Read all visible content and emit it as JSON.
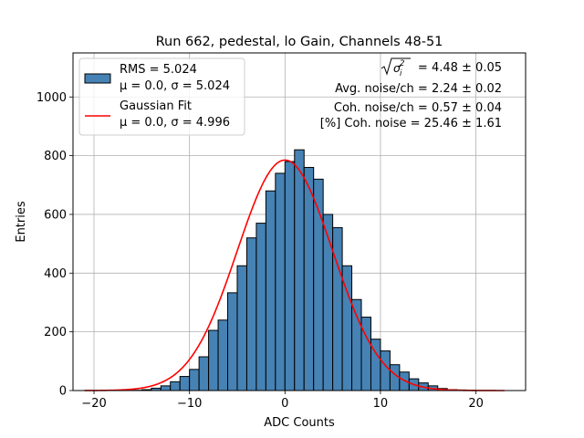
{
  "chart_data": {
    "type": "bar",
    "title": "Run 662, pedestal, lo Gain, Channels 48-51",
    "xlabel": "ADC Counts",
    "ylabel": "Entries",
    "xlim": [
      -22.2,
      25.2
    ],
    "ylim": [
      0,
      1150
    ],
    "xticks": [
      -20,
      -10,
      0,
      10,
      20
    ],
    "xtick_labels": [
      "−20",
      "−10",
      "0",
      "10",
      "20"
    ],
    "yticks": [
      0,
      200,
      400,
      600,
      800,
      1000
    ],
    "ytick_labels": [
      "0",
      "200",
      "400",
      "600",
      "800",
      "1000"
    ],
    "grid": true,
    "bin_width": 1,
    "bin_edges_start": -16,
    "values": [
      1,
      3,
      8,
      16,
      30,
      48,
      72,
      115,
      205,
      240,
      333,
      425,
      520,
      570,
      680,
      740,
      780,
      820,
      760,
      720,
      600,
      555,
      425,
      310,
      250,
      175,
      135,
      88,
      63,
      40,
      26,
      16,
      7,
      3,
      2,
      1
    ],
    "series": [
      {
        "name": "histogram",
        "label_line1": "RMS = 5.024",
        "label_line2": "μ = 0.0, σ = 5.024",
        "color": "#4682b4",
        "edge_color": "#000000"
      },
      {
        "name": "fit",
        "label_line1": "Gaussian Fit",
        "label_line2": "μ = 0.0, σ = 4.996",
        "color": "#ff0000",
        "mu": 0.0,
        "sigma": 4.996,
        "amplitude": 785
      }
    ],
    "legend_placement": "top-left",
    "annotations": {
      "sigma_total": "= 4.48 ± 0.05",
      "avg_noise": "Avg. noise/ch = 2.24 ± 0.02",
      "coh_noise": "Coh. noise/ch = 0.57 ± 0.04",
      "coh_percent": "[%] Coh. noise = 25.46 ± 1.61"
    }
  }
}
